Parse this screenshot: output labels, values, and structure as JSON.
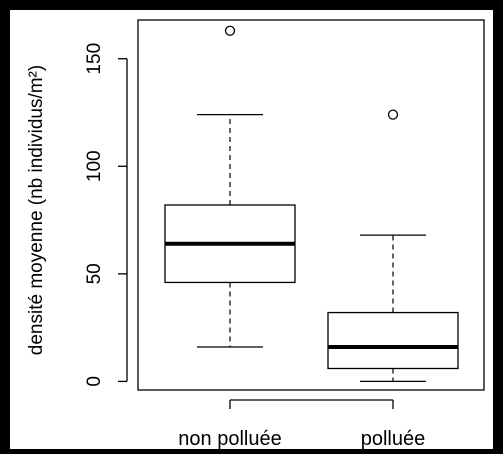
{
  "chart_data": {
    "type": "boxplot",
    "title": "",
    "xlabel": "",
    "ylabel": "densité moyenne (nb individus/m²)",
    "ylim": [
      -4,
      168
    ],
    "yticks": [
      0,
      50,
      100,
      150
    ],
    "ytick_labels": [
      "0",
      "50",
      "100",
      "150"
    ],
    "categories": [
      "non polluée",
      "polluée"
    ],
    "boxes": [
      {
        "whisker_low": 16,
        "q1": 46,
        "median": 64,
        "q3": 82,
        "whisker_high": 124,
        "outliers": [
          163
        ]
      },
      {
        "whisker_low": 0,
        "q1": 6,
        "median": 16,
        "q3": 32,
        "whisker_high": 68,
        "outliers": [
          124
        ]
      }
    ],
    "grid": false,
    "legend": "none"
  }
}
